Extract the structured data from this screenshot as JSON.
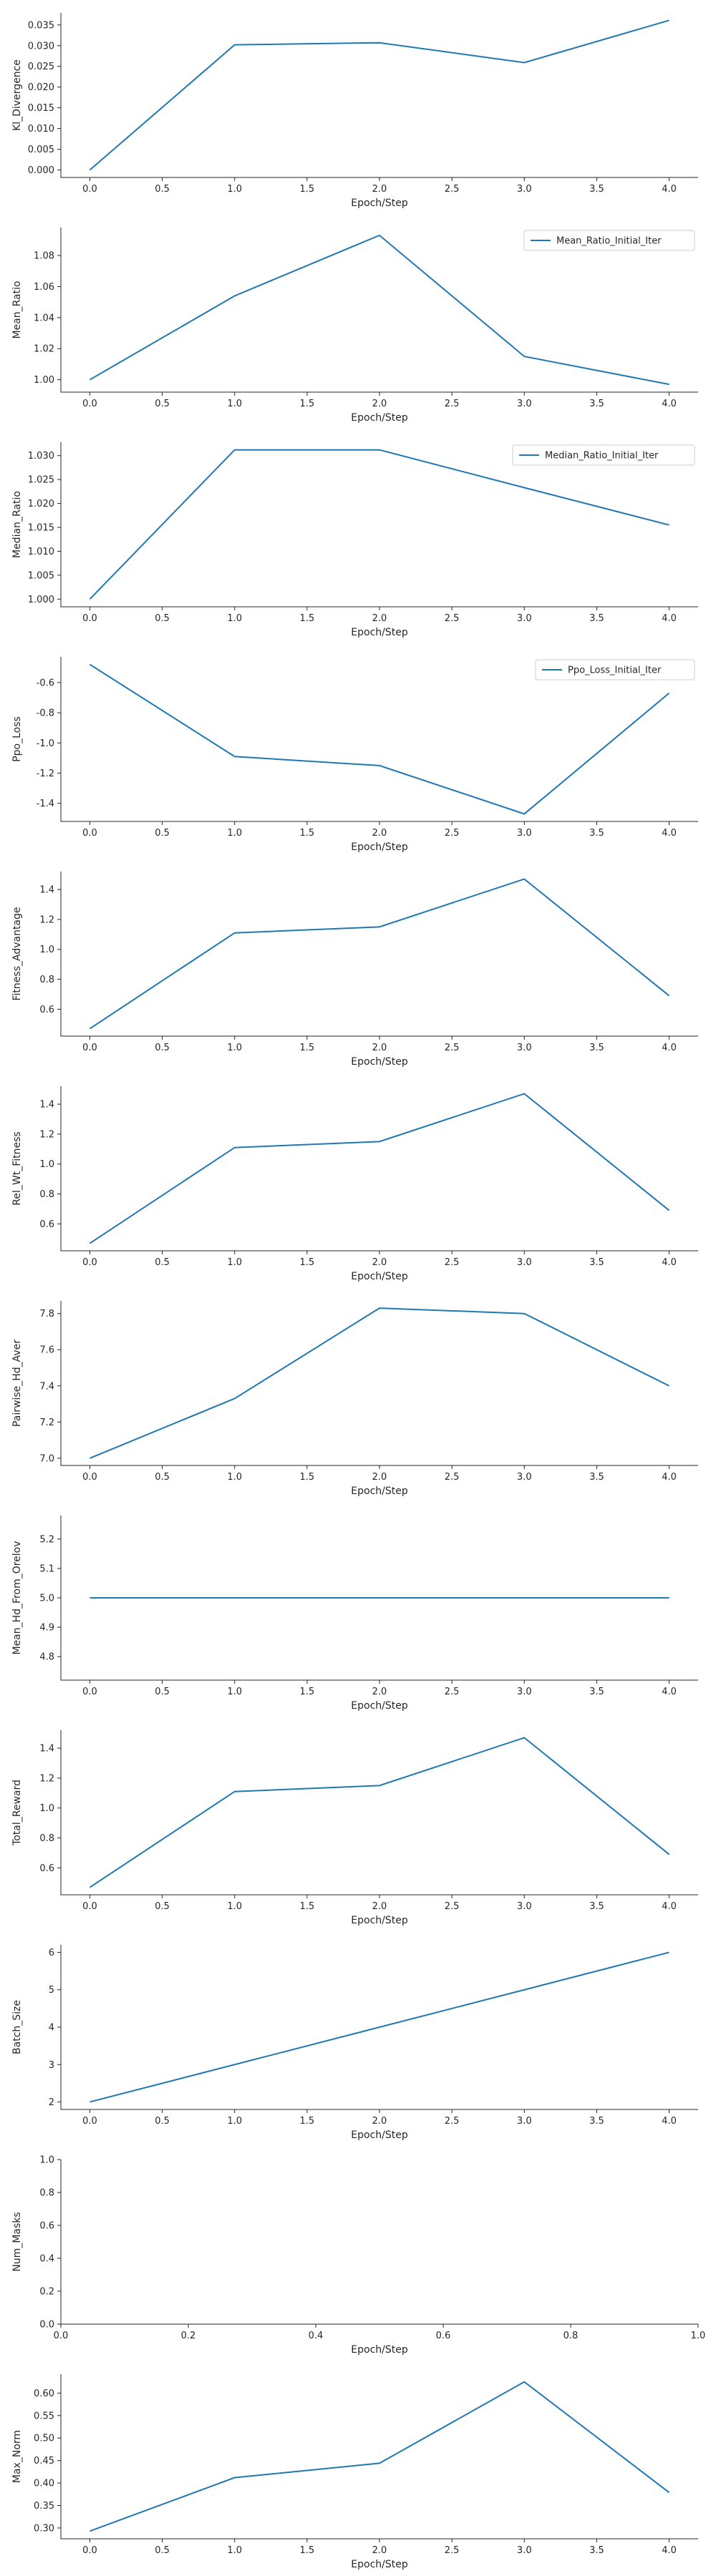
{
  "chart_data": [
    {
      "type": "line",
      "xlabel": "Epoch/Step",
      "ylabel": "Kl_Divergence",
      "x": [
        0,
        1,
        2,
        3,
        4
      ],
      "series": [
        {
          "values": [
            0.0,
            0.0302,
            0.0307,
            0.0259,
            0.0361
          ]
        }
      ],
      "xlim": [
        -0.2,
        4.2
      ],
      "ylim": [
        -0.0018,
        0.0379
      ],
      "xticks": [
        "0.0",
        "0.5",
        "1.0",
        "1.5",
        "2.0",
        "2.5",
        "3.0",
        "3.5",
        "4.0"
      ],
      "yticks": [
        "0.000",
        "0.005",
        "0.010",
        "0.015",
        "0.020",
        "0.025",
        "0.030",
        "0.035"
      ],
      "grid": false,
      "color": "#1f77b4"
    },
    {
      "type": "line",
      "xlabel": "Epoch/Step",
      "ylabel": "Mean_Ratio",
      "x": [
        0,
        1,
        2,
        3,
        4
      ],
      "series": [
        {
          "name": "Mean_Ratio_Initial_Iter",
          "values": [
            1.0,
            1.054,
            1.093,
            1.015,
            0.997
          ]
        }
      ],
      "xlim": [
        -0.2,
        4.2
      ],
      "ylim": [
        0.992,
        1.098
      ],
      "xticks": [
        "0.0",
        "0.5",
        "1.0",
        "1.5",
        "2.0",
        "2.5",
        "3.0",
        "3.5",
        "4.0"
      ],
      "yticks": [
        "1.00",
        "1.02",
        "1.04",
        "1.06",
        "1.08"
      ],
      "legend": "top-right",
      "grid": false,
      "color": "#1f77b4"
    },
    {
      "type": "line",
      "xlabel": "Epoch/Step",
      "ylabel": "Median_Ratio",
      "x": [
        0,
        1,
        2,
        3,
        4
      ],
      "series": [
        {
          "name": "Median_Ratio_Initial_Iter",
          "values": [
            1.0,
            1.0312,
            1.0312,
            1.0233,
            1.0155
          ]
        }
      ],
      "xlim": [
        -0.2,
        4.2
      ],
      "ylim": [
        0.9984,
        1.0328
      ],
      "xticks": [
        "0.0",
        "0.5",
        "1.0",
        "1.5",
        "2.0",
        "2.5",
        "3.0",
        "3.5",
        "4.0"
      ],
      "yticks": [
        "1.000",
        "1.005",
        "1.010",
        "1.015",
        "1.020",
        "1.025",
        "1.030"
      ],
      "legend": "top-right",
      "grid": false,
      "color": "#1f77b4"
    },
    {
      "type": "line",
      "xlabel": "Epoch/Step",
      "ylabel": "Ppo_Loss",
      "x": [
        0,
        1,
        2,
        3,
        4
      ],
      "series": [
        {
          "name": "Ppo_Loss_Initial_Iter",
          "values": [
            -0.48,
            -1.09,
            -1.15,
            -1.47,
            -0.67
          ]
        }
      ],
      "xlim": [
        -0.2,
        4.2
      ],
      "ylim": [
        -1.52,
        -0.43
      ],
      "xticks": [
        "0.0",
        "0.5",
        "1.0",
        "1.5",
        "2.0",
        "2.5",
        "3.0",
        "3.5",
        "4.0"
      ],
      "yticks": [
        "-1.4",
        "-1.2",
        "-1.0",
        "-0.8",
        "-0.6"
      ],
      "legend": "top-right",
      "grid": false,
      "color": "#1f77b4"
    },
    {
      "type": "line",
      "xlabel": "Epoch/Step",
      "ylabel": "Fitness_Advantage",
      "x": [
        0,
        1,
        2,
        3,
        4
      ],
      "series": [
        {
          "values": [
            0.47,
            1.11,
            1.15,
            1.47,
            0.69
          ]
        }
      ],
      "xlim": [
        -0.2,
        4.2
      ],
      "ylim": [
        0.42,
        1.52
      ],
      "xticks": [
        "0.0",
        "0.5",
        "1.0",
        "1.5",
        "2.0",
        "2.5",
        "3.0",
        "3.5",
        "4.0"
      ],
      "yticks": [
        "0.6",
        "0.8",
        "1.0",
        "1.2",
        "1.4"
      ],
      "grid": false,
      "color": "#1f77b4"
    },
    {
      "type": "line",
      "xlabel": "Epoch/Step",
      "ylabel": "Rel_Wt_Fitness",
      "x": [
        0,
        1,
        2,
        3,
        4
      ],
      "series": [
        {
          "values": [
            0.47,
            1.11,
            1.15,
            1.47,
            0.69
          ]
        }
      ],
      "xlim": [
        -0.2,
        4.2
      ],
      "ylim": [
        0.42,
        1.52
      ],
      "xticks": [
        "0.0",
        "0.5",
        "1.0",
        "1.5",
        "2.0",
        "2.5",
        "3.0",
        "3.5",
        "4.0"
      ],
      "yticks": [
        "0.6",
        "0.8",
        "1.0",
        "1.2",
        "1.4"
      ],
      "grid": false,
      "color": "#1f77b4"
    },
    {
      "type": "line",
      "xlabel": "Epoch/Step",
      "ylabel": "Pairwise_Hd_Aver",
      "x": [
        0,
        1,
        2,
        3,
        4
      ],
      "series": [
        {
          "values": [
            7.0,
            7.33,
            7.83,
            7.8,
            7.4
          ]
        }
      ],
      "xlim": [
        -0.2,
        4.2
      ],
      "ylim": [
        6.96,
        7.87
      ],
      "xticks": [
        "0.0",
        "0.5",
        "1.0",
        "1.5",
        "2.0",
        "2.5",
        "3.0",
        "3.5",
        "4.0"
      ],
      "yticks": [
        "7.0",
        "7.2",
        "7.4",
        "7.6",
        "7.8"
      ],
      "grid": false,
      "color": "#1f77b4"
    },
    {
      "type": "line",
      "xlabel": "Epoch/Step",
      "ylabel": "Mean_Hd_From_Orelov",
      "x": [
        0,
        1,
        2,
        3,
        4
      ],
      "series": [
        {
          "values": [
            5.0,
            5.0,
            5.0,
            5.0,
            5.0
          ]
        }
      ],
      "xlim": [
        -0.2,
        4.2
      ],
      "ylim": [
        4.72,
        5.28
      ],
      "xticks": [
        "0.0",
        "0.5",
        "1.0",
        "1.5",
        "2.0",
        "2.5",
        "3.0",
        "3.5",
        "4.0"
      ],
      "yticks": [
        "4.8",
        "4.9",
        "5.0",
        "5.1",
        "5.2"
      ],
      "grid": false,
      "color": "#1f77b4"
    },
    {
      "type": "line",
      "xlabel": "Epoch/Step",
      "ylabel": "Total_Reward",
      "x": [
        0,
        1,
        2,
        3,
        4
      ],
      "series": [
        {
          "values": [
            0.47,
            1.11,
            1.15,
            1.47,
            0.69
          ]
        }
      ],
      "xlim": [
        -0.2,
        4.2
      ],
      "ylim": [
        0.42,
        1.52
      ],
      "xticks": [
        "0.0",
        "0.5",
        "1.0",
        "1.5",
        "2.0",
        "2.5",
        "3.0",
        "3.5",
        "4.0"
      ],
      "yticks": [
        "0.6",
        "0.8",
        "1.0",
        "1.2",
        "1.4"
      ],
      "grid": false,
      "color": "#1f77b4"
    },
    {
      "type": "line",
      "xlabel": "Epoch/Step",
      "ylabel": "Batch_Size",
      "x": [
        0,
        1,
        2,
        3,
        4
      ],
      "series": [
        {
          "values": [
            2,
            3,
            4,
            5,
            6
          ]
        }
      ],
      "xlim": [
        -0.2,
        4.2
      ],
      "ylim": [
        1.8,
        6.2
      ],
      "xticks": [
        "0.0",
        "0.5",
        "1.0",
        "1.5",
        "2.0",
        "2.5",
        "3.0",
        "3.5",
        "4.0"
      ],
      "yticks": [
        "2",
        "3",
        "4",
        "5",
        "6"
      ],
      "grid": false,
      "color": "#1f77b4"
    },
    {
      "type": "line",
      "xlabel": "Epoch/Step",
      "ylabel": "Num_Masks",
      "x": [],
      "series": [
        {
          "values": []
        }
      ],
      "xlim": [
        0,
        1
      ],
      "ylim": [
        0,
        1
      ],
      "xticks": [
        "0.0",
        "0.2",
        "0.4",
        "0.6",
        "0.8",
        "1.0"
      ],
      "yticks": [
        "0.0",
        "0.2",
        "0.4",
        "0.6",
        "0.8",
        "1.0"
      ],
      "grid": false,
      "color": "#1f77b4"
    },
    {
      "type": "line",
      "xlabel": "Epoch/Step",
      "ylabel": "Max_Norm",
      "x": [
        0,
        1,
        2,
        3,
        4
      ],
      "series": [
        {
          "values": [
            0.293,
            0.412,
            0.444,
            0.625,
            0.379
          ]
        }
      ],
      "xlim": [
        -0.2,
        4.2
      ],
      "ylim": [
        0.276,
        0.642
      ],
      "xticks": [
        "0.0",
        "0.5",
        "1.0",
        "1.5",
        "2.0",
        "2.5",
        "3.0",
        "3.5",
        "4.0"
      ],
      "yticks": [
        "0.30",
        "0.35",
        "0.40",
        "0.45",
        "0.50",
        "0.55",
        "0.60"
      ],
      "grid": false,
      "color": "#1f77b4"
    }
  ]
}
